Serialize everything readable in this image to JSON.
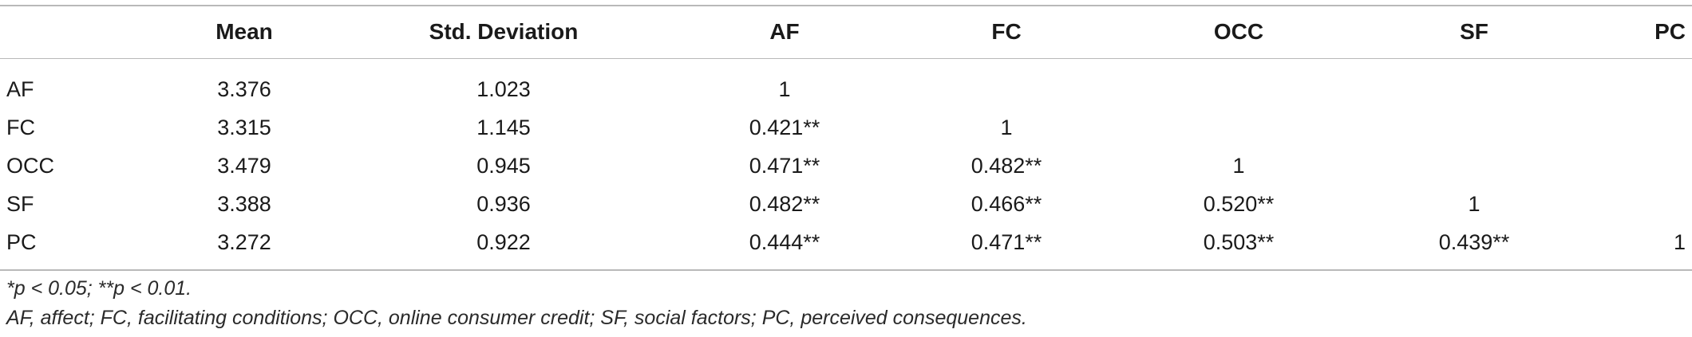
{
  "table": {
    "headers": [
      "",
      "Mean",
      "Std. Deviation",
      "AF",
      "FC",
      "OCC",
      "SF",
      "PC"
    ],
    "rows": [
      [
        "AF",
        "3.376",
        "1.023",
        "1",
        "",
        "",
        "",
        ""
      ],
      [
        "FC",
        "3.315",
        "1.145",
        "0.421**",
        "1",
        "",
        "",
        ""
      ],
      [
        "OCC",
        "3.479",
        "0.945",
        "0.471**",
        "0.482**",
        "1",
        "",
        ""
      ],
      [
        "SF",
        "3.388",
        "0.936",
        "0.482**",
        "0.466**",
        "0.520**",
        "1",
        ""
      ],
      [
        "PC",
        "3.272",
        "0.922",
        "0.444**",
        "0.471**",
        "0.503**",
        "0.439**",
        "1"
      ]
    ]
  },
  "footnotes": {
    "significance": "*p < 0.05; **p < 0.01.",
    "abbreviations": "AF, affect; FC, facilitating conditions; OCC, online consumer credit; SF, social factors; PC, perceived consequences."
  }
}
